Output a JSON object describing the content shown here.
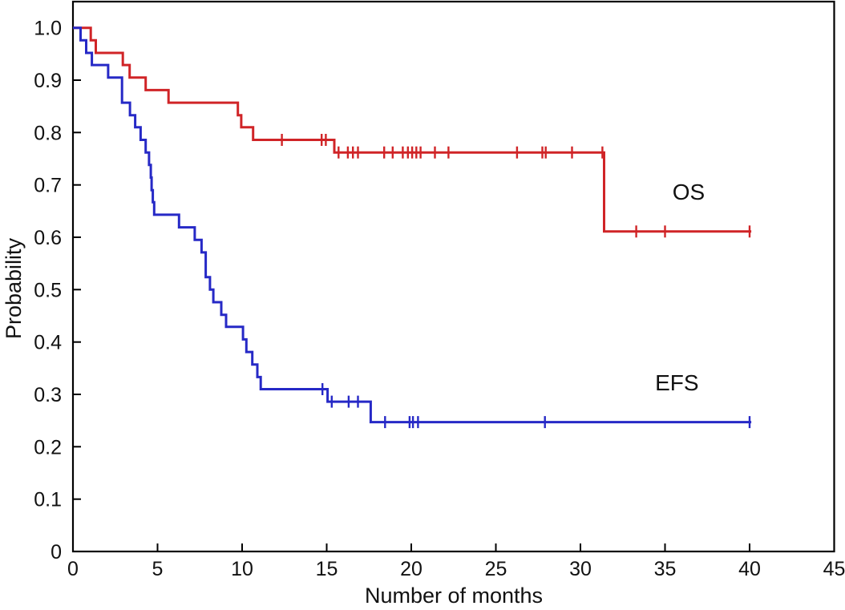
{
  "chart_data": {
    "type": "line",
    "subtype": "kaplan_meier_step",
    "title": "",
    "xlabel": "Number of months",
    "ylabel": "Probability",
    "xlim": [
      0,
      45
    ],
    "ylim": [
      0,
      1.05
    ],
    "xticks": [
      0,
      5,
      10,
      15,
      20,
      25,
      30,
      35,
      40,
      45
    ],
    "xtick_labels": [
      "0",
      "5",
      "10",
      "15",
      "20",
      "25",
      "30",
      "35",
      "40",
      "45"
    ],
    "yticks": [
      0,
      0.1,
      0.2,
      0.3,
      0.4,
      0.5,
      0.6,
      0.7,
      0.8,
      0.9,
      1.0
    ],
    "ytick_labels": [
      "0",
      "0.1",
      "0.2",
      "0.3",
      "0.4",
      "0.5",
      "0.6",
      "0.7",
      "0.8",
      "0.9",
      "1.0"
    ],
    "grid": false,
    "frame": "full-box",
    "tick_direction": "in",
    "axis_color": "#000000",
    "legend_position": "inline-labels",
    "series": [
      {
        "name": "OS",
        "color": "#d02427",
        "end_x": 40.1,
        "label": {
          "text": "OS",
          "x": 36.4,
          "y": 0.672
        },
        "steps": [
          [
            0,
            1.0
          ],
          [
            1.05,
            0.976
          ],
          [
            1.35,
            0.952
          ],
          [
            2.95,
            0.929
          ],
          [
            3.35,
            0.905
          ],
          [
            4.3,
            0.881
          ],
          [
            5.65,
            0.857
          ],
          [
            9.75,
            0.833
          ],
          [
            9.95,
            0.81
          ],
          [
            10.65,
            0.786
          ],
          [
            15.45,
            0.762
          ],
          [
            31.4,
            0.611
          ]
        ],
        "censor_marks": [
          [
            12.35,
            0.786
          ],
          [
            14.7,
            0.786
          ],
          [
            14.95,
            0.786
          ],
          [
            15.7,
            0.762
          ],
          [
            16.25,
            0.762
          ],
          [
            16.55,
            0.762
          ],
          [
            16.85,
            0.762
          ],
          [
            18.4,
            0.762
          ],
          [
            18.9,
            0.762
          ],
          [
            19.5,
            0.762
          ],
          [
            19.8,
            0.762
          ],
          [
            20.05,
            0.762
          ],
          [
            20.3,
            0.762
          ],
          [
            20.55,
            0.762
          ],
          [
            21.4,
            0.762
          ],
          [
            22.2,
            0.762
          ],
          [
            26.25,
            0.762
          ],
          [
            27.75,
            0.762
          ],
          [
            27.95,
            0.762
          ],
          [
            29.5,
            0.762
          ],
          [
            31.3,
            0.762
          ],
          [
            33.3,
            0.611
          ],
          [
            35.0,
            0.611
          ],
          [
            40.0,
            0.611
          ]
        ]
      },
      {
        "name": "EFS",
        "color": "#2629c6",
        "end_x": 40.1,
        "label": {
          "text": "EFS",
          "x": 35.7,
          "y": 0.308
        },
        "steps": [
          [
            0,
            1.0
          ],
          [
            0.45,
            0.976
          ],
          [
            0.78,
            0.952
          ],
          [
            1.12,
            0.929
          ],
          [
            2.08,
            0.905
          ],
          [
            2.9,
            0.857
          ],
          [
            3.37,
            0.833
          ],
          [
            3.68,
            0.81
          ],
          [
            4.0,
            0.786
          ],
          [
            4.3,
            0.762
          ],
          [
            4.5,
            0.738
          ],
          [
            4.6,
            0.714
          ],
          [
            4.65,
            0.69
          ],
          [
            4.72,
            0.667
          ],
          [
            4.8,
            0.643
          ],
          [
            6.27,
            0.619
          ],
          [
            7.2,
            0.595
          ],
          [
            7.6,
            0.571
          ],
          [
            7.85,
            0.524
          ],
          [
            8.1,
            0.5
          ],
          [
            8.3,
            0.476
          ],
          [
            8.77,
            0.452
          ],
          [
            9.05,
            0.429
          ],
          [
            10.05,
            0.405
          ],
          [
            10.25,
            0.381
          ],
          [
            10.6,
            0.357
          ],
          [
            10.9,
            0.333
          ],
          [
            11.1,
            0.31
          ],
          [
            15.05,
            0.286
          ],
          [
            17.6,
            0.247
          ]
        ],
        "censor_marks": [
          [
            14.75,
            0.31
          ],
          [
            15.3,
            0.286
          ],
          [
            16.3,
            0.286
          ],
          [
            16.85,
            0.286
          ],
          [
            18.45,
            0.247
          ],
          [
            19.9,
            0.247
          ],
          [
            20.1,
            0.247
          ],
          [
            20.4,
            0.247
          ],
          [
            27.9,
            0.247
          ],
          [
            40.0,
            0.247
          ]
        ]
      }
    ]
  }
}
